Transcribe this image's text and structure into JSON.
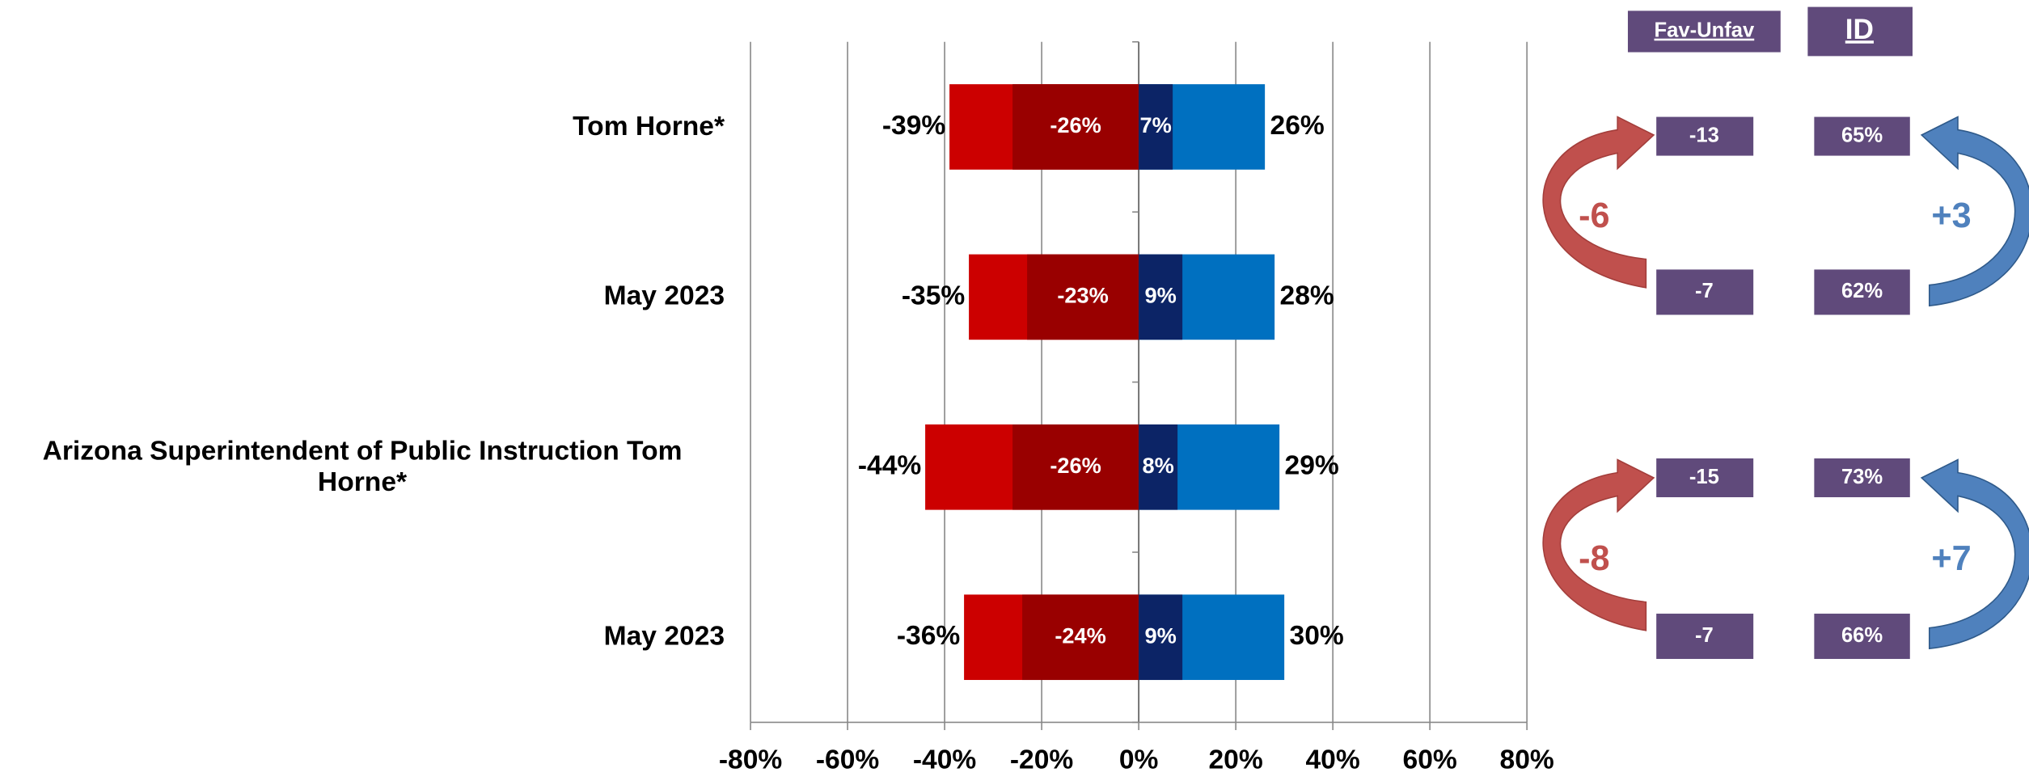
{
  "chart_data": {
    "type": "bar",
    "orientation": "horizontal",
    "categories": [
      "Tom Horne*",
      "May 2023",
      "Arizona Superintendent of Public Instruction Tom Horne*",
      "May 2023"
    ],
    "series": [
      {
        "color": "#cc0000",
        "values": [
          -39,
          -35,
          -44,
          -36
        ],
        "value_labels": [
          "-39%",
          "-35%",
          "-44%",
          "-36%"
        ]
      },
      {
        "color": "#990000",
        "values": [
          -26,
          -23,
          -26,
          -24
        ],
        "value_labels": [
          "-26%",
          "-23%",
          "-26%",
          "-24%"
        ]
      },
      {
        "color": "#0070c0",
        "values": [
          26,
          28,
          29,
          30
        ],
        "value_labels": [
          "26%",
          "28%",
          "29%",
          "30%"
        ]
      },
      {
        "color": "#0c2466",
        "values": [
          7,
          9,
          8,
          9
        ],
        "value_labels": [
          "7%",
          "9%",
          "8%",
          "9%"
        ]
      }
    ],
    "xlim": [
      -80,
      80
    ],
    "xticks": [
      {
        "value": -80,
        "label": "-80%"
      },
      {
        "value": -60,
        "label": "-60%"
      },
      {
        "value": -40,
        "label": "-40%"
      },
      {
        "value": -20,
        "label": "-20%"
      },
      {
        "value": 0,
        "label": "0%"
      },
      {
        "value": 20,
        "label": "20%"
      },
      {
        "value": 40,
        "label": "40%"
      },
      {
        "value": 60,
        "label": "60%"
      },
      {
        "value": 80,
        "label": "80%"
      }
    ],
    "grid": true
  },
  "side_panel": {
    "headers": [
      "Fav-Unfav",
      "ID"
    ],
    "groups": [
      {
        "fav_unfav": [
          "-13",
          "-7"
        ],
        "id": [
          "65%",
          "62%"
        ],
        "fav_unfav_change": "-6",
        "id_change": "+3"
      },
      {
        "fav_unfav": [
          "-15",
          "-7"
        ],
        "id": [
          "73%",
          "66%"
        ],
        "fav_unfav_change": "-8",
        "id_change": "+7"
      }
    ]
  }
}
